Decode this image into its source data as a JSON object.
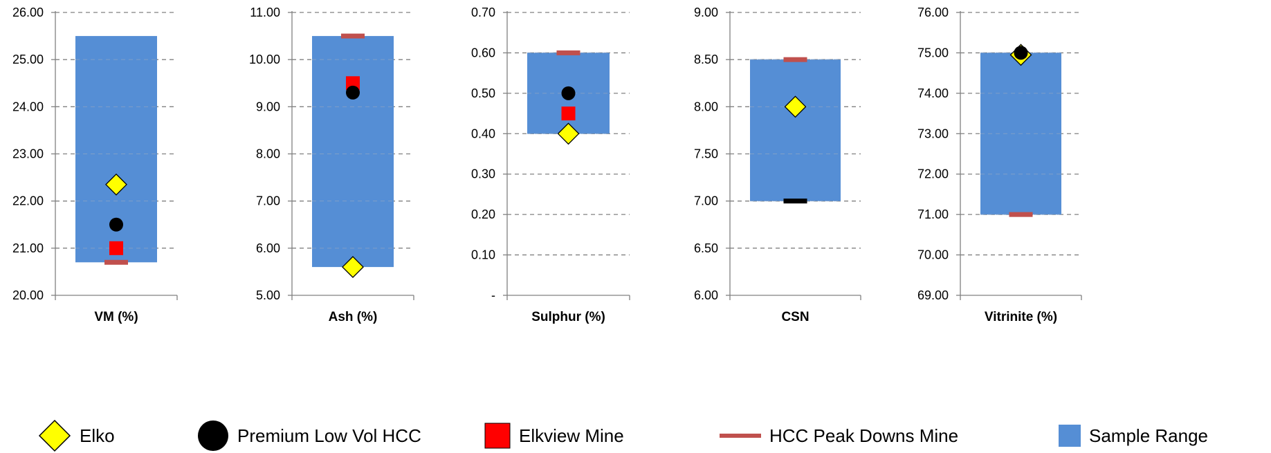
{
  "colors": {
    "sample_range": "#558ed5",
    "elko": "#ffff00",
    "premium": "#000000",
    "elkview": "#ff0000",
    "peak_downs": "#c0504d",
    "grid": "#808080"
  },
  "legend": {
    "elko": "Elko",
    "premium": "Premium Low Vol HCC",
    "elkview": "Elkview Mine",
    "peak_downs": "HCC Peak Downs Mine",
    "sample_range": "Sample Range"
  },
  "chart_data": [
    {
      "type": "box-range",
      "xlabel": "VM (%)",
      "ylim": [
        20,
        26
      ],
      "ticks": [
        "20.00",
        "21.00",
        "22.00",
        "23.00",
        "24.00",
        "25.00",
        "26.00"
      ],
      "tick_values": [
        20,
        21,
        22,
        23,
        24,
        25,
        26
      ],
      "sample_range": [
        20.7,
        25.5
      ],
      "series": {
        "elko": 22.35,
        "premium": 21.5,
        "elkview": 21.0,
        "peak_downs": 20.7
      }
    },
    {
      "type": "box-range",
      "xlabel": "Ash  (%)",
      "ylim": [
        5,
        11
      ],
      "ticks": [
        "5.00",
        "6.00",
        "7.00",
        "8.00",
        "9.00",
        "10.00",
        "11.00"
      ],
      "tick_values": [
        5,
        6,
        7,
        8,
        9,
        10,
        11
      ],
      "sample_range": [
        5.6,
        10.5
      ],
      "series": {
        "elko": 5.6,
        "premium": 9.3,
        "elkview": 9.5,
        "peak_downs": 10.5
      }
    },
    {
      "type": "box-range",
      "xlabel": "Sulphur (%)",
      "ylim": [
        0,
        0.7
      ],
      "ticks": [
        "-",
        "0.10",
        "0.20",
        "0.30",
        "0.40",
        "0.50",
        "0.60",
        "0.70"
      ],
      "tick_values": [
        0,
        0.1,
        0.2,
        0.3,
        0.4,
        0.5,
        0.6,
        0.7
      ],
      "sample_range": [
        0.4,
        0.6
      ],
      "series": {
        "elko": 0.4,
        "premium": 0.5,
        "elkview": 0.45,
        "peak_downs": 0.6
      }
    },
    {
      "type": "box-range",
      "xlabel": "CSN",
      "ylim": [
        6,
        9
      ],
      "ticks": [
        "6.00",
        "6.50",
        "7.00",
        "7.50",
        "8.00",
        "8.50",
        "9.00"
      ],
      "tick_values": [
        6,
        6.5,
        7,
        7.5,
        8,
        8.5,
        9
      ],
      "sample_range": [
        7.0,
        8.5
      ],
      "series": {
        "elko": 8.0,
        "premium": 7.0,
        "peak_downs": 8.5
      }
    },
    {
      "type": "box-range",
      "xlabel": "Vitrinite (%)",
      "ylim": [
        69,
        76
      ],
      "ticks": [
        "69.00",
        "70.00",
        "71.00",
        "72.00",
        "73.00",
        "74.00",
        "75.00",
        "76.00"
      ],
      "tick_values": [
        69,
        70,
        71,
        72,
        73,
        74,
        75,
        76
      ],
      "sample_range": [
        71.0,
        75.0
      ],
      "series": {
        "elko": 74.95,
        "premium": 75.0,
        "peak_downs": 71.0
      }
    }
  ]
}
